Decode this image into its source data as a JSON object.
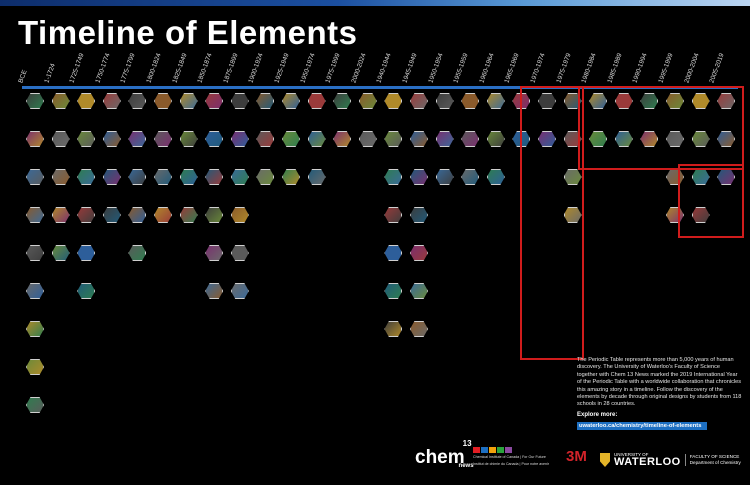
{
  "title": "Timeline of Elements",
  "periods": [
    "BCE",
    "1-1724",
    "1725-1749",
    "1750-1774",
    "1775-1799",
    "1800-1824",
    "1825-1849",
    "1850-1874",
    "1875-1899",
    "1900-1924",
    "1925-1949",
    "1950-1974",
    "1975-1999",
    "2000-2024",
    "1940-1944",
    "1945-1949",
    "1950-1954",
    "1955-1959",
    "1960-1964",
    "1965-1969",
    "1970-1974",
    "1975-1979",
    "1980-1984",
    "1985-1989",
    "1990-1994",
    "1995-1999",
    "2000-2004",
    "2005-2019"
  ],
  "description": "The Periodic Table represents more than 5,000 years of human discovery. The University of Waterloo's Faculty of Science together with Chem 13 News marked the 2019 International Year of the Periodic Table with a worldwide collaboration that chronicles this amazing story in a timeline. Follow the discovery of the elements by decade through original designs by students from 118 schools in 28 countries.",
  "explore_label": "Explore more:",
  "explore_url": "uwaterloo.ca/chemistry/timeline-of-elements",
  "footer": {
    "chem_name": "chem",
    "chem_number": "13",
    "chem_sub": "news",
    "cic_line1": "Chemical Institute of Canada | For Our Future",
    "cic_line2": "Institut de chimie du Canada | Pour notre avenir",
    "sponsor": "3M",
    "uni_small": "UNIVERSITY OF",
    "uni_big": "WATERLOO",
    "faculty": "FACULTY OF SCIENCE",
    "department": "Department of Chemistry"
  }
}
